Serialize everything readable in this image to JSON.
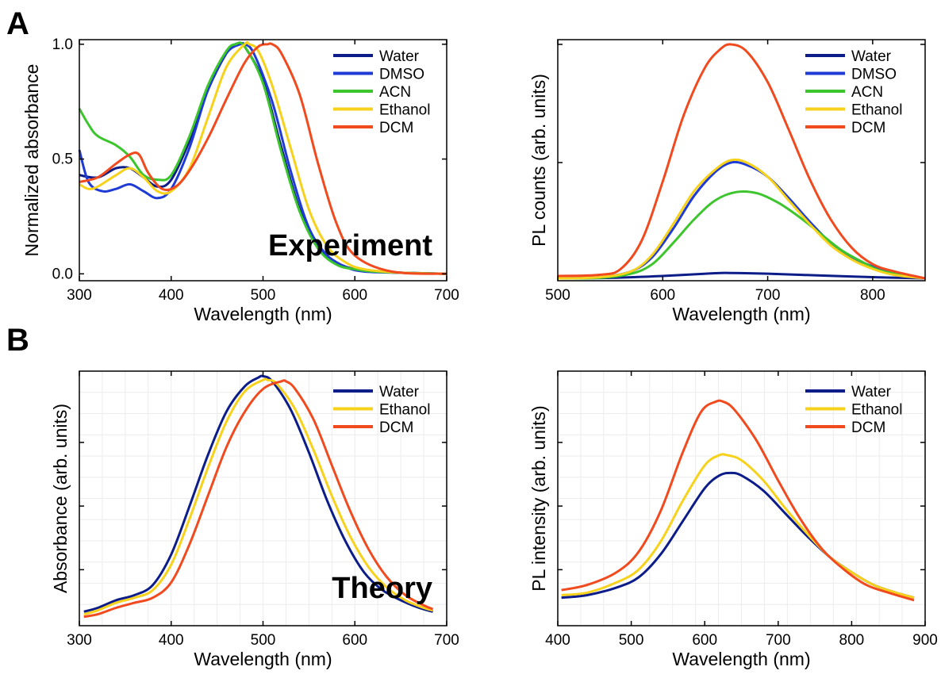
{
  "panel_labels": {
    "a": "A",
    "b": "B"
  },
  "series_colors": {
    "Water": "#0c1d8a",
    "DMSO": "#1f3bd6",
    "ACN": "#3cc52c",
    "Ethanol": "#f7d21c",
    "DCM": "#f04a1e"
  },
  "chart_data": [
    {
      "type": "line",
      "name": "exp-absorbance",
      "annotation": "Experiment",
      "xlabel": "Wavelength (nm)",
      "ylabel": "Normalized absorbance",
      "xlim": [
        300,
        700
      ],
      "ylim": [
        -0.03,
        1.02
      ],
      "xticks": [
        300,
        400,
        500,
        600,
        700
      ],
      "yticks": [
        0.0,
        0.5,
        1.0
      ],
      "ytick_labels": [
        "0.0",
        "0.5",
        "1.0"
      ],
      "grid": false,
      "legend": "top-right",
      "series": [
        {
          "name": "Water",
          "x": [
            300,
            320,
            340,
            355,
            370,
            385,
            400,
            420,
            440,
            460,
            470,
            475,
            480,
            500,
            520,
            540,
            560,
            580,
            600,
            620,
            650,
            700
          ],
          "y": [
            0.43,
            0.42,
            0.46,
            0.46,
            0.42,
            0.38,
            0.41,
            0.58,
            0.8,
            0.96,
            1.0,
            1.0,
            0.99,
            0.84,
            0.55,
            0.28,
            0.12,
            0.05,
            0.02,
            0.01,
            0.005,
            0.0
          ]
        },
        {
          "name": "DMSO",
          "x": [
            300,
            310,
            325,
            340,
            355,
            370,
            385,
            400,
            420,
            440,
            460,
            475,
            480,
            490,
            510,
            530,
            550,
            570,
            590,
            610,
            650,
            700
          ],
          "y": [
            0.54,
            0.4,
            0.36,
            0.37,
            0.39,
            0.36,
            0.33,
            0.37,
            0.55,
            0.8,
            0.96,
            1.0,
            1.0,
            0.96,
            0.75,
            0.45,
            0.2,
            0.08,
            0.03,
            0.01,
            0.005,
            0.0
          ]
        },
        {
          "name": "ACN",
          "x": [
            300,
            310,
            320,
            340,
            355,
            370,
            385,
            400,
            420,
            440,
            460,
            470,
            480,
            500,
            520,
            540,
            560,
            580,
            600,
            620,
            650,
            700
          ],
          "y": [
            0.72,
            0.65,
            0.6,
            0.56,
            0.51,
            0.43,
            0.41,
            0.43,
            0.6,
            0.82,
            0.97,
            1.0,
            0.99,
            0.83,
            0.53,
            0.27,
            0.11,
            0.04,
            0.02,
            0.01,
            0.005,
            0.0
          ]
        },
        {
          "name": "Ethanol",
          "x": [
            300,
            310,
            320,
            340,
            355,
            370,
            385,
            400,
            420,
            440,
            460,
            480,
            485,
            495,
            510,
            530,
            550,
            570,
            590,
            610,
            650,
            700
          ],
          "y": [
            0.39,
            0.37,
            0.38,
            0.43,
            0.46,
            0.42,
            0.36,
            0.36,
            0.46,
            0.68,
            0.9,
            1.0,
            1.0,
            0.97,
            0.82,
            0.55,
            0.28,
            0.12,
            0.05,
            0.02,
            0.005,
            0.0
          ]
        },
        {
          "name": "DCM",
          "x": [
            300,
            320,
            340,
            355,
            365,
            375,
            390,
            405,
            420,
            440,
            460,
            480,
            495,
            505,
            510,
            520,
            540,
            560,
            580,
            600,
            640,
            700
          ],
          "y": [
            0.4,
            0.42,
            0.48,
            0.52,
            0.52,
            0.44,
            0.37,
            0.38,
            0.45,
            0.59,
            0.76,
            0.92,
            0.99,
            1.0,
            1.0,
            0.96,
            0.78,
            0.48,
            0.22,
            0.08,
            0.01,
            0.0
          ]
        }
      ]
    },
    {
      "type": "line",
      "name": "exp-pl",
      "xlabel": "Wavelength (nm)",
      "ylabel": "PL counts (arb. units)",
      "xlim": [
        500,
        850
      ],
      "ylim": [
        0,
        1.02
      ],
      "xticks": [
        500,
        600,
        700,
        800
      ],
      "yticks": [
        0.5,
        1.0
      ],
      "ytick_labels": [
        "",
        ""
      ],
      "grid": false,
      "legend": "top-right",
      "series": [
        {
          "name": "Water",
          "x": [
            500,
            550,
            600,
            650,
            665,
            700,
            750,
            800,
            850
          ],
          "y": [
            0.01,
            0.012,
            0.02,
            0.032,
            0.033,
            0.03,
            0.022,
            0.015,
            0.01
          ]
        },
        {
          "name": "DMSO",
          "x": [
            500,
            540,
            570,
            590,
            610,
            630,
            650,
            665,
            680,
            700,
            720,
            740,
            760,
            780,
            800,
            820,
            850
          ],
          "y": [
            0.01,
            0.015,
            0.04,
            0.1,
            0.22,
            0.36,
            0.46,
            0.5,
            0.49,
            0.44,
            0.35,
            0.25,
            0.16,
            0.1,
            0.06,
            0.03,
            0.01
          ]
        },
        {
          "name": "ACN",
          "x": [
            500,
            540,
            570,
            590,
            610,
            630,
            650,
            670,
            690,
            710,
            730,
            750,
            770,
            790,
            810,
            850
          ],
          "y": [
            0.01,
            0.012,
            0.03,
            0.07,
            0.16,
            0.26,
            0.34,
            0.375,
            0.37,
            0.33,
            0.27,
            0.2,
            0.13,
            0.08,
            0.04,
            0.01
          ]
        },
        {
          "name": "Ethanol",
          "x": [
            500,
            540,
            570,
            590,
            610,
            630,
            650,
            665,
            680,
            700,
            720,
            740,
            760,
            780,
            800,
            820,
            850
          ],
          "y": [
            0.01,
            0.015,
            0.04,
            0.11,
            0.24,
            0.38,
            0.47,
            0.51,
            0.5,
            0.44,
            0.34,
            0.24,
            0.15,
            0.09,
            0.05,
            0.025,
            0.01
          ]
        },
        {
          "name": "DCM",
          "x": [
            500,
            540,
            560,
            580,
            600,
            620,
            640,
            655,
            665,
            680,
            700,
            720,
            740,
            760,
            780,
            800,
            820,
            850
          ],
          "y": [
            0.02,
            0.025,
            0.05,
            0.17,
            0.42,
            0.7,
            0.9,
            0.98,
            1.0,
            0.97,
            0.84,
            0.64,
            0.43,
            0.26,
            0.14,
            0.07,
            0.04,
            0.01
          ]
        }
      ]
    },
    {
      "type": "line",
      "name": "theory-absorbance",
      "annotation": "Theory",
      "xlabel": "Wavelength (nm)",
      "ylabel": "Absorbance (arb. units)",
      "xlim": [
        300,
        700
      ],
      "ylim": [
        0,
        1.0
      ],
      "xticks": [
        300,
        400,
        500,
        600,
        700
      ],
      "yticks": [
        0.22,
        0.47,
        0.72
      ],
      "ytick_labels": [
        "",
        "",
        ""
      ],
      "grid": true,
      "legend": "top-right",
      "series": [
        {
          "name": "Water",
          "x": [
            305,
            320,
            340,
            360,
            380,
            400,
            420,
            440,
            460,
            480,
            495,
            500,
            510,
            530,
            550,
            570,
            590,
            610,
            630,
            650,
            670,
            685
          ],
          "y": [
            0.055,
            0.07,
            0.1,
            0.12,
            0.16,
            0.28,
            0.47,
            0.67,
            0.84,
            0.94,
            0.975,
            0.98,
            0.96,
            0.85,
            0.68,
            0.49,
            0.33,
            0.21,
            0.14,
            0.1,
            0.07,
            0.055
          ]
        },
        {
          "name": "Ethanol",
          "x": [
            305,
            320,
            340,
            360,
            380,
            400,
            420,
            440,
            460,
            480,
            500,
            505,
            515,
            535,
            555,
            575,
            595,
            615,
            635,
            655,
            675,
            685
          ],
          "y": [
            0.045,
            0.06,
            0.09,
            0.11,
            0.14,
            0.24,
            0.42,
            0.62,
            0.8,
            0.92,
            0.965,
            0.965,
            0.95,
            0.85,
            0.69,
            0.51,
            0.35,
            0.23,
            0.15,
            0.1,
            0.07,
            0.06
          ]
        },
        {
          "name": "DCM",
          "x": [
            305,
            320,
            340,
            360,
            380,
            400,
            420,
            440,
            460,
            480,
            500,
            520,
            525,
            535,
            555,
            575,
            595,
            615,
            635,
            655,
            675,
            685
          ],
          "y": [
            0.035,
            0.045,
            0.07,
            0.09,
            0.11,
            0.17,
            0.32,
            0.51,
            0.7,
            0.84,
            0.93,
            0.96,
            0.96,
            0.93,
            0.81,
            0.63,
            0.45,
            0.3,
            0.19,
            0.12,
            0.08,
            0.065
          ]
        }
      ]
    },
    {
      "type": "line",
      "name": "theory-pl",
      "xlabel": "Wavelength (nm)",
      "ylabel": "PL intensity (arb. units)",
      "xlim": [
        400,
        900
      ],
      "ylim": [
        0,
        1.0
      ],
      "xticks": [
        400,
        500,
        600,
        700,
        800,
        900
      ],
      "yticks": [
        0.22,
        0.47,
        0.72
      ],
      "ytick_labels": [
        "",
        "",
        ""
      ],
      "grid": true,
      "legend": "top-right",
      "series": [
        {
          "name": "Water",
          "x": [
            405,
            440,
            480,
            510,
            540,
            570,
            600,
            620,
            635,
            650,
            680,
            710,
            740,
            770,
            800,
            830,
            860,
            885
          ],
          "y": [
            0.11,
            0.12,
            0.15,
            0.19,
            0.28,
            0.41,
            0.54,
            0.59,
            0.6,
            0.59,
            0.53,
            0.44,
            0.35,
            0.27,
            0.21,
            0.16,
            0.13,
            0.11
          ]
        },
        {
          "name": "Ethanol",
          "x": [
            405,
            440,
            480,
            510,
            540,
            570,
            600,
            620,
            630,
            650,
            680,
            710,
            740,
            770,
            800,
            830,
            860,
            885
          ],
          "y": [
            0.12,
            0.13,
            0.17,
            0.22,
            0.33,
            0.49,
            0.63,
            0.67,
            0.67,
            0.65,
            0.57,
            0.46,
            0.36,
            0.27,
            0.21,
            0.16,
            0.13,
            0.11
          ]
        },
        {
          "name": "DCM",
          "x": [
            405,
            440,
            480,
            510,
            540,
            570,
            595,
            615,
            625,
            640,
            670,
            700,
            730,
            760,
            790,
            820,
            850,
            885
          ],
          "y": [
            0.14,
            0.16,
            0.21,
            0.29,
            0.45,
            0.68,
            0.84,
            0.88,
            0.88,
            0.85,
            0.73,
            0.57,
            0.42,
            0.3,
            0.22,
            0.16,
            0.13,
            0.1
          ]
        }
      ]
    }
  ]
}
